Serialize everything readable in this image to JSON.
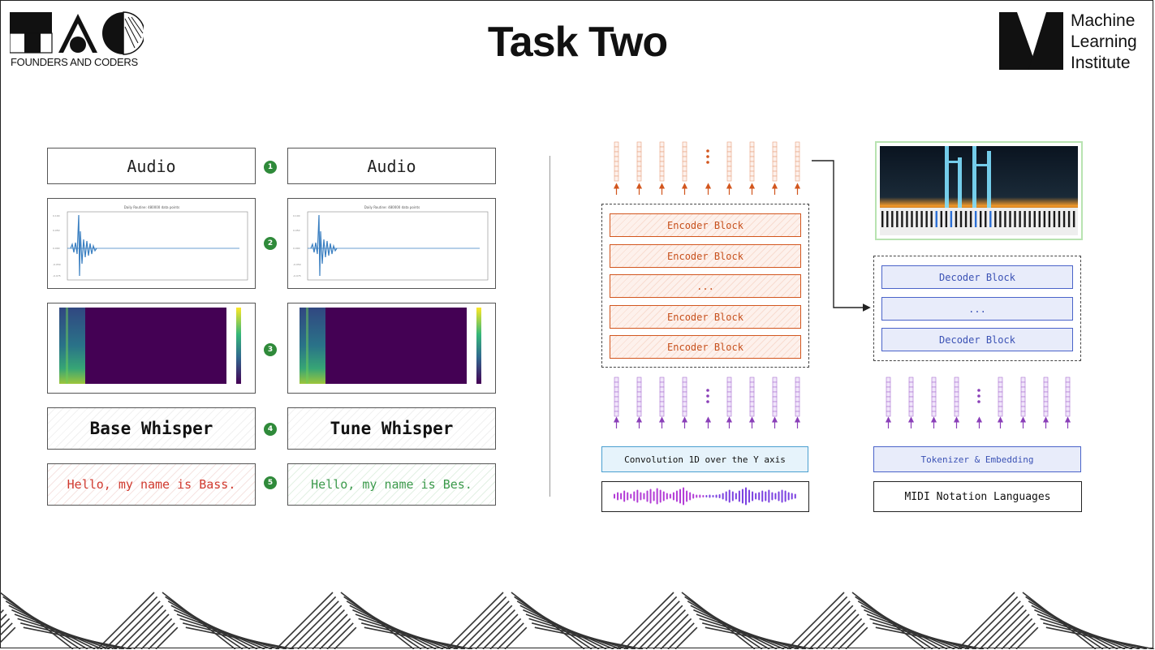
{
  "header": {
    "title": "Task Two",
    "left_logo_text": "FOUNDERS AND CODERS",
    "right_logo_lines": [
      "Machine",
      "Learning",
      "Institute"
    ]
  },
  "pipeline": {
    "left_column": {
      "input_label": "Audio",
      "model_label": "Base Whisper",
      "output_text": "Hello, my name is Bass."
    },
    "right_column": {
      "input_label": "Audio",
      "model_label": "Tune Whisper",
      "output_text": "Hello, my name is Bes."
    },
    "steps": [
      "1",
      "2",
      "3",
      "4",
      "5"
    ],
    "waveform_plot_title": "Daily Routine: 480000 data points"
  },
  "architecture": {
    "encoder_blocks": [
      "Encoder Block",
      "Encoder Block",
      "...",
      "Encoder Block",
      "Encoder Block"
    ],
    "decoder_blocks": [
      "Decoder Block",
      "...",
      "Decoder Block"
    ],
    "encoder_input_label": "Convolution 1D over the Y axis",
    "decoder_input_label": "Tokenizer & Embedding",
    "decoder_source_label": "MIDI Notation Languages"
  },
  "colors": {
    "encoder": "#d2561e",
    "decoder": "#4a63c9",
    "token_purple": "#9b4fc9",
    "badge_green": "#2f8a3a",
    "output_red": "#d03a2f",
    "output_green": "#3c9a4c"
  }
}
